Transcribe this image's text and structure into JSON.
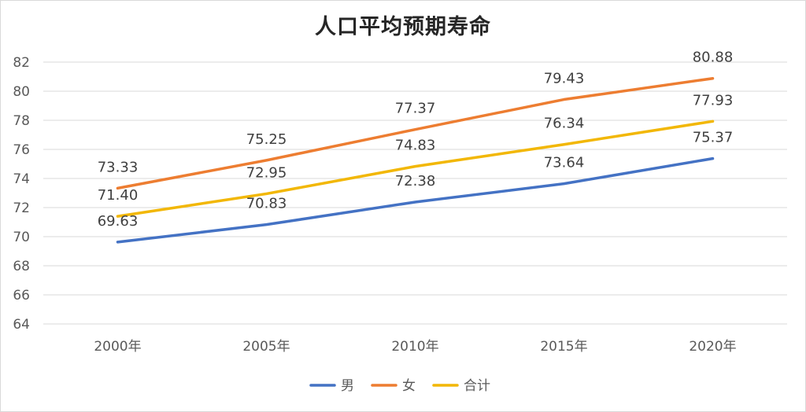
{
  "chart_data": {
    "type": "line",
    "title": "人口平均预期寿命",
    "categories": [
      "2000年",
      "2005年",
      "2010年",
      "2015年",
      "2020年"
    ],
    "ylim": [
      64,
      82
    ],
    "yticks": [
      64,
      66,
      68,
      70,
      72,
      74,
      76,
      78,
      80,
      82
    ],
    "grid": true,
    "legend_position": "bottom",
    "series": [
      {
        "name": "男",
        "color": "#4472C4",
        "values": [
          69.63,
          70.83,
          72.38,
          73.64,
          75.37
        ]
      },
      {
        "name": "女",
        "color": "#ED7D31",
        "values": [
          73.33,
          75.25,
          77.37,
          79.43,
          80.88
        ]
      },
      {
        "name": "合计",
        "color": "#F2B705",
        "values": [
          71.4,
          72.95,
          74.83,
          76.34,
          77.93
        ]
      }
    ]
  }
}
